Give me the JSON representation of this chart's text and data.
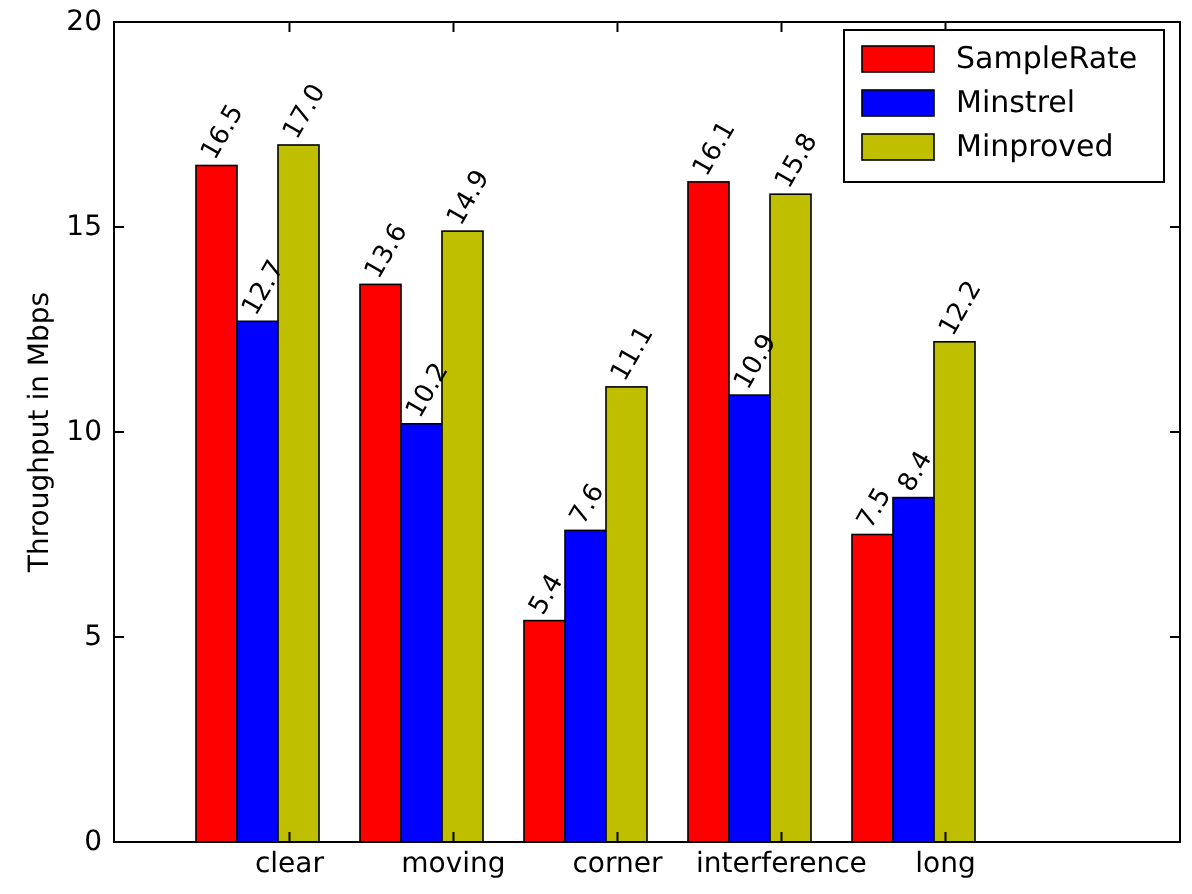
{
  "chart_data": {
    "type": "bar",
    "ylabel": "Throughput in Mbps",
    "categories": [
      "clear",
      "moving",
      "corner",
      "interference",
      "long"
    ],
    "series": [
      {
        "name": "SampleRate",
        "color": "#ff0000",
        "values": [
          16.5,
          13.6,
          5.4,
          16.1,
          7.5
        ],
        "value_labels": [
          "16.5",
          "13.6",
          "5.4",
          "16.1",
          "7.5"
        ]
      },
      {
        "name": "Minstrel",
        "color": "#0000ff",
        "values": [
          12.7,
          10.2,
          7.6,
          10.9,
          8.4
        ],
        "value_labels": [
          "12.7",
          "10.2",
          "7.6",
          "10.9",
          "8.4"
        ]
      },
      {
        "name": "Minproved",
        "color": "#bfbf00",
        "values": [
          17.0,
          14.9,
          11.1,
          15.8,
          12.2
        ],
        "value_labels": [
          "17.0",
          "14.9",
          "11.1",
          "15.8",
          "12.2"
        ]
      }
    ],
    "ylim": [
      0,
      20
    ],
    "yticks": [
      0,
      5,
      10,
      15,
      20
    ],
    "grid": false,
    "legend": "top right"
  }
}
